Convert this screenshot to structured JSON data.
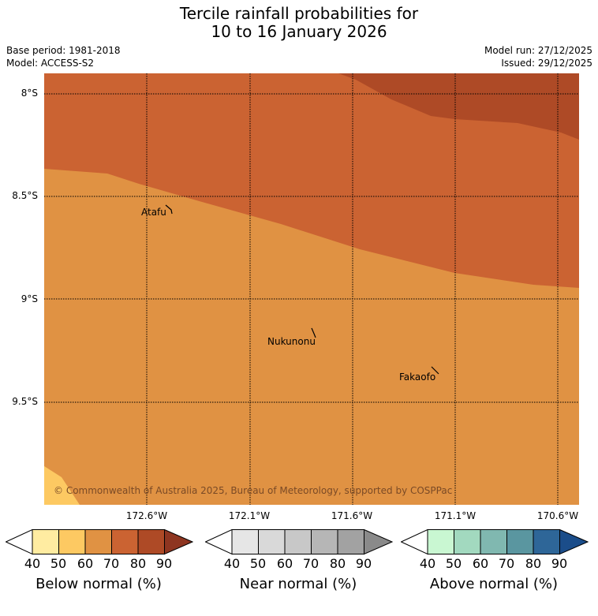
{
  "header": {
    "title_line1": "Tercile rainfall probabilities for",
    "title_line2": "10 to 16 January 2026",
    "base_period": "Base period: 1981-2018",
    "model": "Model: ACCESS-S2",
    "model_run": "Model run: 27/12/2025",
    "issued": "Issued: 29/12/2025"
  },
  "map": {
    "lat_labels": [
      "8°S",
      "8.5°S",
      "9°S",
      "9.5°S"
    ],
    "lon_labels": [
      "172.6°W",
      "172.1°W",
      "171.6°W",
      "171.1°W",
      "170.6°W"
    ],
    "places": [
      "Atafu",
      "Nukunonu",
      "Fakaofo"
    ],
    "copyright": "© Commonwealth of Australia 2025, Bureau of Meteorology, supported by COSPPac",
    "shading_colors": {
      "below_50_60": "#fdc962",
      "below_60_70": "#e09243",
      "below_70_80": "#cb6332",
      "below_80_90": "#ae4a26"
    }
  },
  "colorbars": [
    {
      "title": "Below normal (%)",
      "ticks": [
        "40",
        "50",
        "60",
        "70",
        "80",
        "90"
      ],
      "colors": [
        "#ffeca1",
        "#fdc962",
        "#e09243",
        "#cb6332",
        "#ae4a26",
        "#8e3520"
      ]
    },
    {
      "title": "Near normal (%)",
      "ticks": [
        "40",
        "50",
        "60",
        "70",
        "80",
        "90"
      ],
      "colors": [
        "#e6e6e6",
        "#d9d9d9",
        "#c8c8c8",
        "#b6b6b6",
        "#a2a2a2",
        "#8a8a8a"
      ]
    },
    {
      "title": "Above normal (%)",
      "ticks": [
        "40",
        "50",
        "60",
        "70",
        "80",
        "90"
      ],
      "colors": [
        "#c9f7d2",
        "#a2d9bf",
        "#80b8b0",
        "#5a96a0",
        "#2e6698",
        "#1b4d8a"
      ]
    }
  ]
}
